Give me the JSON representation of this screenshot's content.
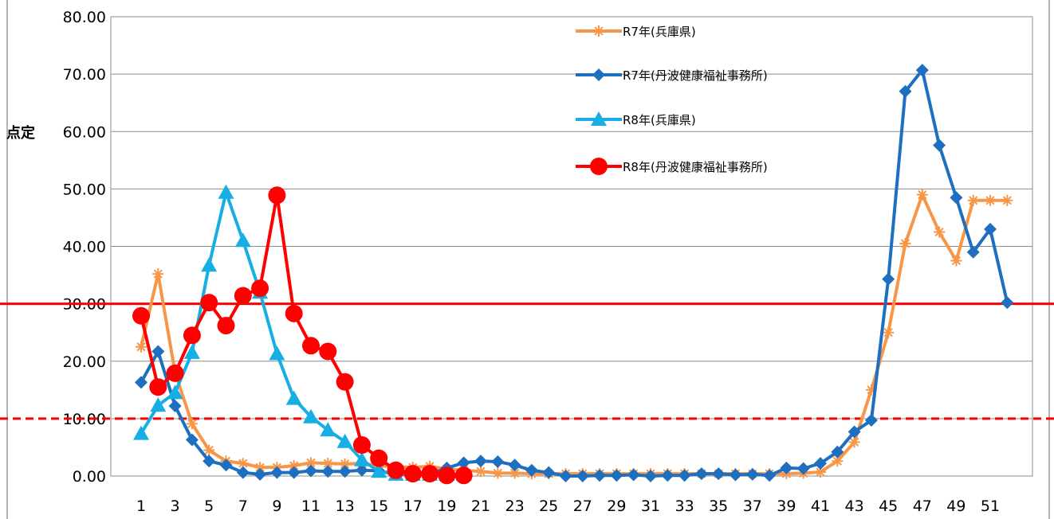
{
  "chart_data": {
    "type": "line",
    "ylabel": "点定",
    "ylim": [
      0,
      80
    ],
    "yticks": [
      "0.00",
      "10.00",
      "20.00",
      "30.00",
      "40.00",
      "50.00",
      "60.00",
      "70.00",
      "80.00"
    ],
    "xlim": [
      1,
      52
    ],
    "xticks": [
      "1",
      "3",
      "5",
      "7",
      "9",
      "11",
      "13",
      "15",
      "17",
      "19",
      "21",
      "23",
      "25",
      "27",
      "29",
      "31",
      "33",
      "35",
      "37",
      "39",
      "41",
      "43",
      "45",
      "47",
      "49",
      "51"
    ],
    "grid": true,
    "legend": "top-center",
    "reference_lines": [
      {
        "value": 30,
        "style": "solid",
        "color": "#ff0000"
      },
      {
        "value": 10,
        "style": "dashed",
        "color": "#ff0000"
      }
    ],
    "series": [
      {
        "name": "R7年(兵庫県)",
        "color": "#f79646",
        "marker": "star",
        "values": [
          22.5,
          35.2,
          18,
          9.1,
          4.5,
          2.6,
          2.2,
          1.5,
          1.5,
          1.8,
          2.3,
          2.2,
          2.1,
          2.2,
          1.8,
          1.6,
          1.5,
          1.7,
          1.2,
          1,
          0.8,
          0.5,
          0.5,
          0.4,
          0.4,
          0.4,
          0.4,
          0.4,
          0.4,
          0.4,
          0.4,
          0.4,
          0.4,
          0.4,
          0.4,
          0.4,
          0.4,
          0.4,
          0.4,
          0.5,
          0.7,
          2.6,
          5.9,
          15,
          25,
          40.5,
          49,
          42.5,
          37.5,
          48,
          48,
          48
        ]
      },
      {
        "name": "R7年(丹波健康福祉事務所)",
        "color": "#1f6fc0",
        "marker": "diamond",
        "values": [
          16.3,
          21.7,
          12.2,
          6.3,
          2.6,
          1.9,
          0.6,
          0.3,
          0.6,
          0.6,
          0.9,
          0.8,
          0.8,
          1,
          0.9,
          0.3,
          0.2,
          0.3,
          1.4,
          2.3,
          2.6,
          2.5,
          1.9,
          1,
          0.6,
          0,
          0,
          0.1,
          0.1,
          0.2,
          0,
          0.1,
          0.1,
          0.4,
          0.4,
          0.2,
          0.3,
          0.1,
          1.4,
          1.3,
          2.2,
          4.2,
          7.7,
          9.7,
          34.3,
          67,
          70.7,
          57.6,
          48.5,
          39,
          43,
          30.2
        ]
      },
      {
        "name": "R8年(兵庫県)",
        "color": "#17aee4",
        "marker": "triangle",
        "values": [
          7.4,
          12.3,
          14.5,
          21.5,
          36.7,
          49.4,
          41,
          32,
          21.3,
          13.5,
          10.3,
          8,
          6,
          2.8,
          0.8,
          0.3,
          0.3,
          0.3,
          0.3,
          0.3
        ]
      },
      {
        "name": "R8年(丹波健康福祉事務所)",
        "color": "#ff0000",
        "marker": "circle",
        "values": [
          27.9,
          15.5,
          17.9,
          24.5,
          30.2,
          26.2,
          31.4,
          32.7,
          48.9,
          28.3,
          22.7,
          21.7,
          16.4,
          5.4,
          3.1,
          1,
          0.4,
          0.4,
          0.1,
          0.1
        ]
      }
    ]
  }
}
